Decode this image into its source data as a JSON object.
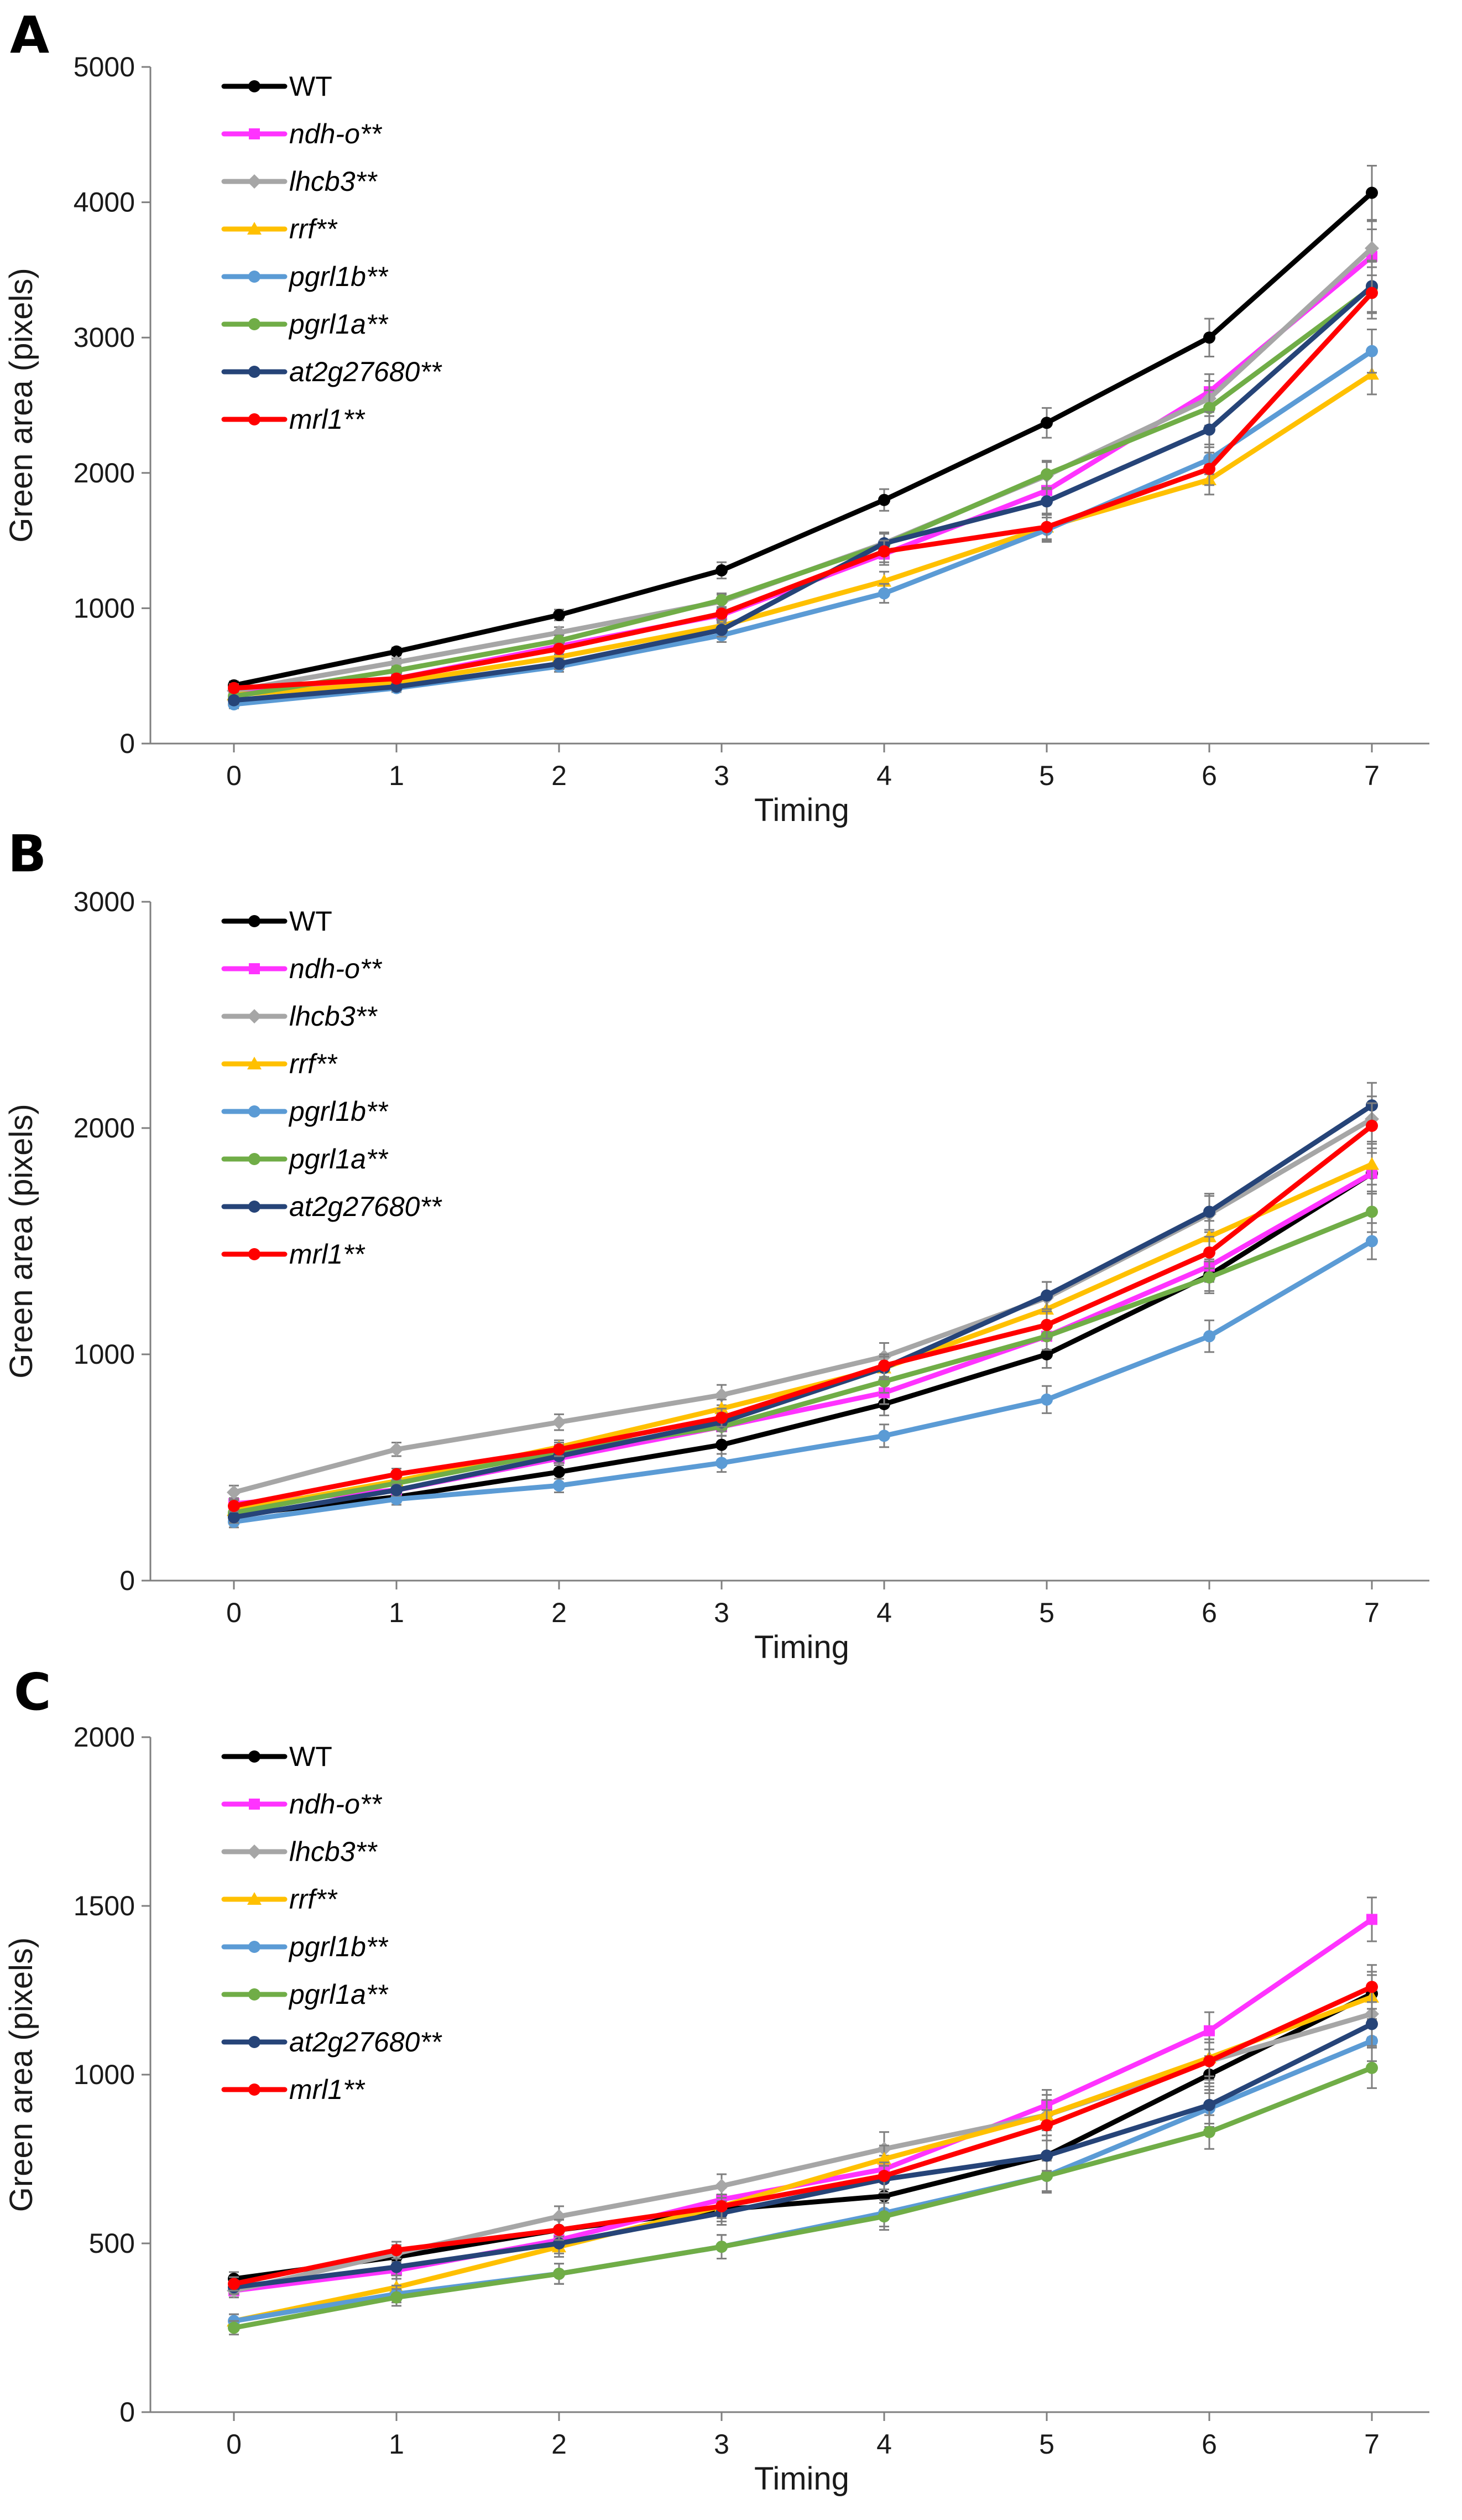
{
  "series_styles": [
    {
      "name": "WT",
      "italic": false,
      "color": "#000000",
      "marker": "circle"
    },
    {
      "name": "ndh-o**",
      "italic": true,
      "color": "#ff33ff",
      "marker": "square"
    },
    {
      "name": "lhcb3**",
      "italic": true,
      "color": "#a6a6a6",
      "marker": "diamond"
    },
    {
      "name": "rrf**",
      "italic": true,
      "color": "#ffc000",
      "marker": "triangle"
    },
    {
      "name": "pgrl1b**",
      "italic": true,
      "color": "#5b9bd5",
      "marker": "circle"
    },
    {
      "name": "pgrl1a**",
      "italic": true,
      "color": "#70ad47",
      "marker": "circle"
    },
    {
      "name": "at2g27680**",
      "italic": true,
      "color": "#264478",
      "marker": "circle"
    },
    {
      "name": "mrl1**",
      "italic": true,
      "color": "#ff0000",
      "marker": "circle"
    }
  ],
  "chart_data": [
    {
      "panel": "A",
      "type": "line",
      "xlabel": "Timing",
      "ylabel": "Green area (pixels)",
      "x": [
        0,
        1,
        2,
        3,
        4,
        5,
        6,
        7
      ],
      "ylim": [
        0,
        5000
      ],
      "yticks": [
        0,
        1000,
        2000,
        3000,
        4000,
        5000
      ],
      "series": [
        {
          "name": "WT",
          "values": [
            430,
            680,
            950,
            1280,
            1800,
            2370,
            3000,
            4070
          ],
          "errors": [
            30,
            30,
            40,
            60,
            80,
            110,
            140,
            200
          ]
        },
        {
          "name": "ndh-o**",
          "values": [
            380,
            480,
            720,
            950,
            1400,
            1870,
            2600,
            3600
          ],
          "errors": [
            30,
            30,
            40,
            50,
            80,
            100,
            130,
            200
          ]
        },
        {
          "name": "lhcb3**",
          "values": [
            390,
            600,
            820,
            1050,
            1480,
            1980,
            2550,
            3660
          ],
          "errors": [
            30,
            30,
            40,
            50,
            80,
            100,
            130,
            200
          ]
        },
        {
          "name": "rrf**",
          "values": [
            360,
            450,
            640,
            870,
            1200,
            1600,
            1950,
            2730
          ],
          "errors": [
            30,
            30,
            40,
            50,
            70,
            90,
            110,
            150
          ]
        },
        {
          "name": "pgrl1b**",
          "values": [
            290,
            410,
            570,
            800,
            1110,
            1580,
            2100,
            2900
          ],
          "errors": [
            30,
            30,
            40,
            50,
            70,
            90,
            110,
            160
          ]
        },
        {
          "name": "pgrl1a**",
          "values": [
            350,
            540,
            760,
            1060,
            1470,
            1990,
            2480,
            3370
          ],
          "errors": [
            30,
            30,
            40,
            50,
            80,
            100,
            130,
            190
          ]
        },
        {
          "name": "at2g27680**",
          "values": [
            320,
            420,
            590,
            840,
            1480,
            1790,
            2320,
            3380
          ],
          "errors": [
            30,
            30,
            40,
            50,
            80,
            100,
            130,
            190
          ]
        },
        {
          "name": "mrl1**",
          "values": [
            410,
            480,
            700,
            960,
            1420,
            1600,
            2030,
            3330
          ],
          "errors": [
            30,
            30,
            40,
            50,
            80,
            100,
            120,
            190
          ]
        }
      ]
    },
    {
      "panel": "B",
      "type": "line",
      "xlabel": "Timing",
      "ylabel": "Green area (pixels)",
      "x": [
        0,
        1,
        2,
        3,
        4,
        5,
        6,
        7
      ],
      "ylim": [
        0,
        3000
      ],
      "yticks": [
        0,
        1000,
        2000,
        3000
      ],
      "series": [
        {
          "name": "WT",
          "values": [
            290,
            370,
            480,
            600,
            780,
            1000,
            1350,
            1800
          ],
          "errors": [
            25,
            25,
            30,
            40,
            50,
            60,
            70,
            90
          ]
        },
        {
          "name": "ndh-o**",
          "values": [
            340,
            400,
            540,
            680,
            830,
            1080,
            1390,
            1800
          ],
          "errors": [
            25,
            25,
            30,
            40,
            50,
            60,
            70,
            90
          ]
        },
        {
          "name": "lhcb3**",
          "values": [
            390,
            580,
            700,
            820,
            990,
            1250,
            1620,
            2040
          ],
          "errors": [
            30,
            30,
            35,
            45,
            60,
            70,
            80,
            100
          ]
        },
        {
          "name": "rrf**",
          "values": [
            310,
            440,
            590,
            760,
            940,
            1200,
            1520,
            1840
          ],
          "errors": [
            25,
            25,
            30,
            40,
            50,
            60,
            70,
            90
          ]
        },
        {
          "name": "pgrl1b**",
          "values": [
            260,
            360,
            420,
            520,
            640,
            800,
            1080,
            1500
          ],
          "errors": [
            25,
            25,
            30,
            40,
            50,
            60,
            70,
            80
          ]
        },
        {
          "name": "pgrl1a**",
          "values": [
            300,
            430,
            570,
            680,
            880,
            1080,
            1340,
            1630
          ],
          "errors": [
            25,
            25,
            30,
            40,
            50,
            60,
            70,
            90
          ]
        },
        {
          "name": "at2g27680**",
          "values": [
            280,
            400,
            550,
            700,
            940,
            1260,
            1630,
            2100
          ],
          "errors": [
            25,
            25,
            30,
            40,
            50,
            60,
            80,
            100
          ]
        },
        {
          "name": "mrl1**",
          "values": [
            330,
            470,
            580,
            720,
            950,
            1130,
            1450,
            2010
          ],
          "errors": [
            25,
            25,
            30,
            40,
            50,
            60,
            70,
            100
          ]
        }
      ]
    },
    {
      "panel": "C",
      "type": "line",
      "xlabel": "Timing",
      "ylabel": "Green area (pixels)",
      "x": [
        0,
        1,
        2,
        3,
        4,
        5,
        6,
        7
      ],
      "ylim": [
        0,
        2000
      ],
      "yticks": [
        0,
        500,
        1000,
        1500,
        2000
      ],
      "series": [
        {
          "name": "WT",
          "values": [
            395,
            460,
            540,
            600,
            640,
            760,
            1000,
            1240
          ],
          "errors": [
            20,
            25,
            30,
            35,
            40,
            45,
            55,
            65
          ]
        },
        {
          "name": "ndh-o**",
          "values": [
            360,
            420,
            510,
            630,
            720,
            910,
            1130,
            1460
          ],
          "errors": [
            20,
            25,
            30,
            35,
            40,
            45,
            55,
            65
          ]
        },
        {
          "name": "lhcb3**",
          "values": [
            360,
            470,
            580,
            670,
            780,
            880,
            1040,
            1180
          ],
          "errors": [
            20,
            25,
            30,
            35,
            50,
            60,
            65,
            70
          ]
        },
        {
          "name": "rrf**",
          "values": [
            270,
            370,
            490,
            610,
            750,
            880,
            1050,
            1230
          ],
          "errors": [
            20,
            25,
            30,
            35,
            40,
            45,
            55,
            65
          ]
        },
        {
          "name": "pgrl1b**",
          "values": [
            270,
            350,
            410,
            490,
            590,
            700,
            900,
            1100
          ],
          "errors": [
            20,
            25,
            30,
            35,
            40,
            50,
            55,
            60
          ]
        },
        {
          "name": "pgrl1a**",
          "values": [
            250,
            340,
            410,
            490,
            580,
            700,
            830,
            1020
          ],
          "errors": [
            20,
            25,
            30,
            35,
            40,
            45,
            50,
            60
          ]
        },
        {
          "name": "at2g27680**",
          "values": [
            370,
            430,
            500,
            590,
            690,
            760,
            910,
            1150
          ],
          "errors": [
            20,
            25,
            30,
            35,
            40,
            45,
            55,
            65
          ]
        },
        {
          "name": "mrl1**",
          "values": [
            380,
            480,
            540,
            610,
            700,
            850,
            1040,
            1260
          ],
          "errors": [
            20,
            25,
            30,
            35,
            40,
            45,
            55,
            65
          ]
        }
      ]
    }
  ]
}
